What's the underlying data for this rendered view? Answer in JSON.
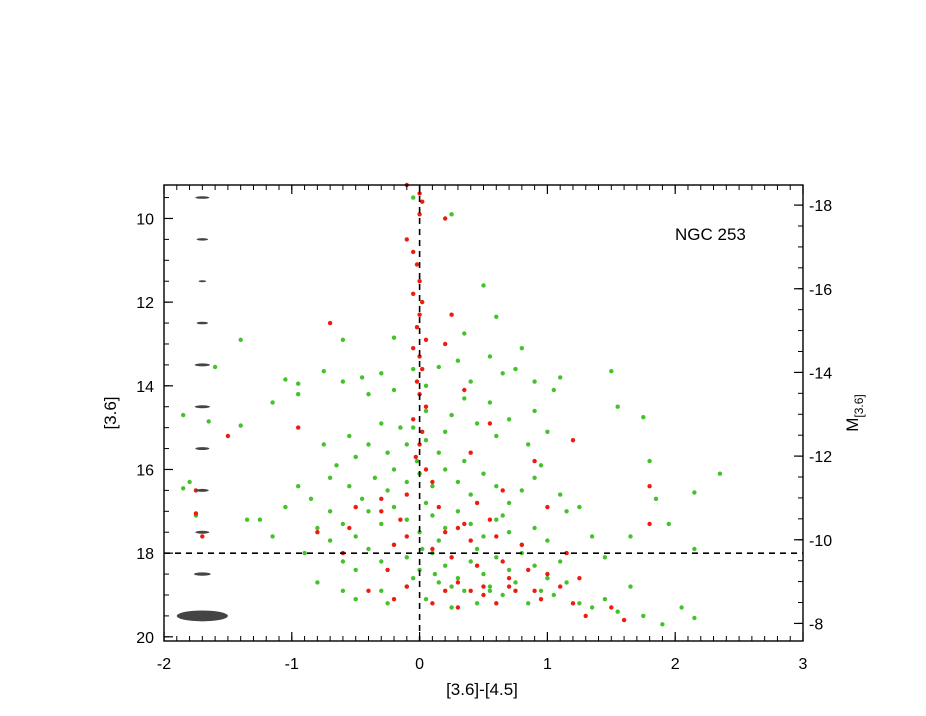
{
  "chart_data": {
    "type": "scatter",
    "title": "",
    "annotation": "NGC 253",
    "xlabel": "[3.6]-[4.5]",
    "ylabel": "[3.6]",
    "y2label_main": "M",
    "y2label_sub": "[3.6]",
    "xlim": [
      -2,
      3
    ],
    "ylim": [
      20.1,
      9.2
    ],
    "y2_offset": -27.68,
    "y2lim": [
      -7.58,
      -18.48
    ],
    "x_ticks": [
      "-2",
      "-1",
      "0",
      "1",
      "2",
      "3"
    ],
    "y_ticks": [
      "10",
      "12",
      "14",
      "16",
      "18",
      "20"
    ],
    "y2_ticks": [
      "-18",
      "-16",
      "-14",
      "-12",
      "-10",
      "-8"
    ],
    "x_tick_values": [
      -2,
      -1,
      0,
      1,
      2,
      3
    ],
    "y_tick_values": [
      10,
      12,
      14,
      16,
      18,
      20
    ],
    "y2_tick_values": [
      -18,
      -16,
      -14,
      -12,
      -10,
      -8
    ],
    "reference_lines": {
      "vertical_x": 0,
      "horizontal_y": 18
    },
    "error_bars": {
      "x_center": -1.7,
      "rows": [
        {
          "mag": 9.5,
          "x_err": 0.055,
          "y_err": 0.03
        },
        {
          "mag": 10.5,
          "x_err": 0.045,
          "y_err": 0.03
        },
        {
          "mag": 11.5,
          "x_err": 0.03,
          "y_err": 0.02
        },
        {
          "mag": 12.5,
          "x_err": 0.045,
          "y_err": 0.03
        },
        {
          "mag": 13.5,
          "x_err": 0.06,
          "y_err": 0.035
        },
        {
          "mag": 14.5,
          "x_err": 0.06,
          "y_err": 0.035
        },
        {
          "mag": 15.5,
          "x_err": 0.055,
          "y_err": 0.035
        },
        {
          "mag": 16.5,
          "x_err": 0.05,
          "y_err": 0.035
        },
        {
          "mag": 17.5,
          "x_err": 0.055,
          "y_err": 0.035
        },
        {
          "mag": 18.5,
          "x_err": 0.065,
          "y_err": 0.04
        },
        {
          "mag": 19.5,
          "x_err": 0.2,
          "y_err": 0.13
        }
      ]
    },
    "series": [
      {
        "color": "#44c12c",
        "points": [
          [
            -0.05,
            9.5
          ],
          [
            0.25,
            9.9
          ],
          [
            0.5,
            11.6
          ],
          [
            0.6,
            12.35
          ],
          [
            -0.2,
            12.85
          ],
          [
            0.35,
            12.75
          ],
          [
            0.8,
            13.1
          ],
          [
            -0.6,
            12.9
          ],
          [
            -1.4,
            12.9
          ],
          [
            -1.6,
            13.55
          ],
          [
            -1.05,
            13.85
          ],
          [
            -0.95,
            13.95
          ],
          [
            -0.95,
            14.2
          ],
          [
            -1.15,
            14.4
          ],
          [
            -0.75,
            13.65
          ],
          [
            -0.6,
            13.9
          ],
          [
            -0.45,
            13.8
          ],
          [
            -0.3,
            13.7
          ],
          [
            -0.4,
            14.2
          ],
          [
            -0.2,
            14.1
          ],
          [
            -0.05,
            13.6
          ],
          [
            0.05,
            14.0
          ],
          [
            0.15,
            13.55
          ],
          [
            0.3,
            13.4
          ],
          [
            0.4,
            13.9
          ],
          [
            0.55,
            13.3
          ],
          [
            0.65,
            13.7
          ],
          [
            0.75,
            13.6
          ],
          [
            0.9,
            13.9
          ],
          [
            1.05,
            14.1
          ],
          [
            1.1,
            13.8
          ],
          [
            1.5,
            13.65
          ],
          [
            1.55,
            14.5
          ],
          [
            1.75,
            14.75
          ],
          [
            1.8,
            15.8
          ],
          [
            1.85,
            16.7
          ],
          [
            2.15,
            16.55
          ],
          [
            2.35,
            16.1
          ],
          [
            -1.85,
            14.7
          ],
          [
            -1.65,
            14.85
          ],
          [
            -1.4,
            14.95
          ],
          [
            -1.8,
            16.3
          ],
          [
            -1.85,
            16.45
          ],
          [
            -1.75,
            17.1
          ],
          [
            -1.35,
            17.2
          ],
          [
            -1.25,
            17.2
          ],
          [
            -1.15,
            17.6
          ],
          [
            -1.05,
            16.9
          ],
          [
            -0.95,
            16.4
          ],
          [
            -0.85,
            16.7
          ],
          [
            -0.8,
            17.4
          ],
          [
            -0.7,
            17.7
          ],
          [
            -0.6,
            18.2
          ],
          [
            -0.5,
            18.4
          ],
          [
            -0.9,
            18.0
          ],
          [
            -0.8,
            18.7
          ],
          [
            -0.6,
            18.9
          ],
          [
            -0.5,
            19.1
          ],
          [
            -0.3,
            18.9
          ],
          [
            -0.25,
            19.2
          ],
          [
            -0.1,
            18.8
          ],
          [
            0.05,
            19.1
          ],
          [
            0.15,
            18.7
          ],
          [
            0.25,
            19.3
          ],
          [
            0.35,
            18.9
          ],
          [
            0.45,
            19.2
          ],
          [
            0.55,
            18.8
          ],
          [
            0.65,
            19.0
          ],
          [
            0.75,
            18.7
          ],
          [
            0.85,
            19.2
          ],
          [
            0.95,
            18.9
          ],
          [
            1.05,
            19.0
          ],
          [
            1.15,
            18.7
          ],
          [
            1.25,
            19.2
          ],
          [
            1.35,
            19.3
          ],
          [
            1.45,
            19.1
          ],
          [
            1.55,
            19.4
          ],
          [
            1.65,
            18.8
          ],
          [
            1.75,
            19.5
          ],
          [
            1.9,
            19.7
          ],
          [
            2.05,
            19.3
          ],
          [
            2.15,
            19.55
          ],
          [
            2.15,
            17.9
          ],
          [
            1.95,
            17.3
          ],
          [
            1.65,
            17.6
          ],
          [
            1.45,
            18.1
          ],
          [
            1.35,
            17.6
          ],
          [
            1.25,
            16.9
          ],
          [
            1.15,
            17.0
          ],
          [
            1.1,
            16.6
          ],
          [
            0.95,
            15.9
          ],
          [
            0.85,
            15.4
          ],
          [
            1.0,
            15.1
          ],
          [
            0.9,
            14.6
          ],
          [
            0.7,
            14.8
          ],
          [
            0.6,
            15.2
          ],
          [
            0.55,
            14.4
          ],
          [
            0.45,
            14.9
          ],
          [
            0.35,
            14.3
          ],
          [
            0.25,
            14.7
          ],
          [
            0.2,
            15.1
          ],
          [
            0.15,
            15.6
          ],
          [
            0.05,
            15.3
          ],
          [
            -0.05,
            15.0
          ],
          [
            -0.1,
            15.4
          ],
          [
            -0.15,
            15.0
          ],
          [
            -0.25,
            15.6
          ],
          [
            -0.3,
            14.9
          ],
          [
            -0.4,
            15.4
          ],
          [
            -0.5,
            15.7
          ],
          [
            -0.55,
            15.2
          ],
          [
            -0.65,
            15.9
          ],
          [
            -0.7,
            16.2
          ],
          [
            -0.75,
            15.4
          ],
          [
            -0.55,
            16.4
          ],
          [
            -0.45,
            16.7
          ],
          [
            -0.35,
            16.2
          ],
          [
            -0.25,
            16.5
          ],
          [
            -0.2,
            16.0
          ],
          [
            -0.1,
            16.3
          ],
          [
            0.0,
            16.1
          ],
          [
            0.1,
            16.4
          ],
          [
            0.2,
            16.0
          ],
          [
            0.3,
            16.3
          ],
          [
            0.4,
            16.6
          ],
          [
            0.5,
            16.1
          ],
          [
            0.6,
            16.4
          ],
          [
            0.7,
            16.8
          ],
          [
            0.8,
            16.5
          ],
          [
            0.9,
            16.2
          ],
          [
            -0.4,
            17.0
          ],
          [
            -0.3,
            17.3
          ],
          [
            -0.2,
            16.9
          ],
          [
            -0.1,
            17.2
          ],
          [
            0.0,
            17.5
          ],
          [
            0.1,
            17.1
          ],
          [
            0.2,
            17.4
          ],
          [
            0.3,
            17.0
          ],
          [
            0.4,
            17.3
          ],
          [
            0.5,
            17.6
          ],
          [
            0.6,
            17.2
          ],
          [
            0.7,
            17.5
          ],
          [
            0.8,
            17.8
          ],
          [
            0.9,
            17.4
          ],
          [
            1.0,
            17.7
          ],
          [
            -0.5,
            17.6
          ],
          [
            -0.4,
            17.9
          ],
          [
            -0.3,
            18.2
          ],
          [
            -0.2,
            17.8
          ],
          [
            -0.1,
            18.1
          ],
          [
            0.0,
            18.4
          ],
          [
            0.1,
            18.0
          ],
          [
            0.2,
            18.3
          ],
          [
            0.3,
            18.6
          ],
          [
            0.4,
            18.2
          ],
          [
            0.5,
            18.5
          ],
          [
            0.6,
            18.1
          ],
          [
            0.7,
            18.4
          ],
          [
            0.8,
            18.0
          ],
          [
            0.9,
            18.3
          ],
          [
            1.0,
            18.6
          ],
          [
            1.1,
            18.2
          ],
          [
            -0.6,
            17.3
          ],
          [
            -0.7,
            17.0
          ],
          [
            0.05,
            16.8
          ],
          [
            0.15,
            17.7
          ],
          [
            0.25,
            18.8
          ],
          [
            0.45,
            17.9
          ],
          [
            0.55,
            18.9
          ],
          [
            0.65,
            17.1
          ],
          [
            0.35,
            15.8
          ],
          [
            0.05,
            14.6
          ],
          [
            -0.02,
            15.8
          ],
          [
            0.02,
            17.9
          ],
          [
            -0.05,
            18.6
          ],
          [
            0.12,
            18.5
          ]
        ]
      },
      {
        "color": "#ee1b0e",
        "points": [
          [
            -0.1,
            9.2
          ],
          [
            0.0,
            9.4
          ],
          [
            0.02,
            9.6
          ],
          [
            0.0,
            9.9
          ],
          [
            0.2,
            10.0
          ],
          [
            -0.1,
            10.5
          ],
          [
            -0.05,
            10.8
          ],
          [
            -0.02,
            11.1
          ],
          [
            0.0,
            11.5
          ],
          [
            -0.05,
            11.8
          ],
          [
            0.02,
            12.0
          ],
          [
            0.0,
            12.3
          ],
          [
            -0.02,
            12.6
          ],
          [
            0.05,
            12.9
          ],
          [
            -0.05,
            13.1
          ],
          [
            0.0,
            13.3
          ],
          [
            0.02,
            13.6
          ],
          [
            -0.02,
            13.9
          ],
          [
            0.0,
            14.2
          ],
          [
            0.05,
            14.5
          ],
          [
            -0.05,
            14.8
          ],
          [
            0.02,
            15.1
          ],
          [
            0.0,
            15.4
          ],
          [
            -0.03,
            15.7
          ],
          [
            0.05,
            16.0
          ],
          [
            0.1,
            16.3
          ],
          [
            -0.1,
            16.6
          ],
          [
            0.15,
            16.9
          ],
          [
            -0.15,
            17.2
          ],
          [
            0.2,
            17.5
          ],
          [
            -0.2,
            17.8
          ],
          [
            0.25,
            18.1
          ],
          [
            -0.25,
            18.4
          ],
          [
            0.3,
            18.7
          ],
          [
            -0.3,
            17.0
          ],
          [
            0.35,
            17.3
          ],
          [
            0.4,
            17.7
          ],
          [
            0.45,
            18.3
          ],
          [
            0.5,
            18.8
          ],
          [
            0.55,
            17.2
          ],
          [
            0.6,
            17.6
          ],
          [
            0.65,
            18.2
          ],
          [
            0.7,
            18.6
          ],
          [
            0.75,
            18.9
          ],
          [
            0.8,
            17.8
          ],
          [
            0.85,
            18.4
          ],
          [
            0.9,
            18.9
          ],
          [
            0.95,
            19.1
          ],
          [
            1.0,
            18.5
          ],
          [
            1.1,
            18.8
          ],
          [
            1.2,
            19.2
          ],
          [
            1.3,
            19.5
          ],
          [
            1.5,
            19.3
          ],
          [
            1.6,
            19.6
          ],
          [
            1.8,
            17.3
          ],
          [
            1.8,
            16.4
          ],
          [
            1.2,
            15.3
          ],
          [
            0.9,
            15.8
          ],
          [
            0.55,
            14.9
          ],
          [
            0.4,
            15.6
          ],
          [
            -0.7,
            12.5
          ],
          [
            -0.95,
            15.0
          ],
          [
            -1.5,
            15.2
          ],
          [
            -1.75,
            16.5
          ],
          [
            -1.75,
            17.05
          ],
          [
            -1.7,
            17.6
          ],
          [
            -0.55,
            17.4
          ],
          [
            -0.6,
            18.0
          ],
          [
            -0.4,
            18.9
          ],
          [
            -0.2,
            19.1
          ],
          [
            -0.1,
            18.8
          ],
          [
            0.1,
            19.2
          ],
          [
            0.2,
            18.9
          ],
          [
            0.3,
            19.3
          ],
          [
            0.4,
            18.9
          ],
          [
            0.5,
            19.0
          ],
          [
            0.6,
            19.2
          ],
          [
            0.7,
            18.8
          ],
          [
            -0.8,
            17.5
          ],
          [
            -0.5,
            16.9
          ],
          [
            -0.3,
            16.7
          ],
          [
            -0.1,
            17.6
          ],
          [
            0.1,
            17.9
          ],
          [
            0.3,
            17.4
          ],
          [
            0.45,
            16.8
          ],
          [
            0.65,
            16.5
          ],
          [
            0.35,
            14.1
          ],
          [
            0.25,
            12.3
          ],
          [
            0.2,
            13.0
          ],
          [
            1.0,
            16.9
          ],
          [
            1.15,
            18.0
          ],
          [
            1.25,
            18.6
          ]
        ]
      }
    ]
  }
}
